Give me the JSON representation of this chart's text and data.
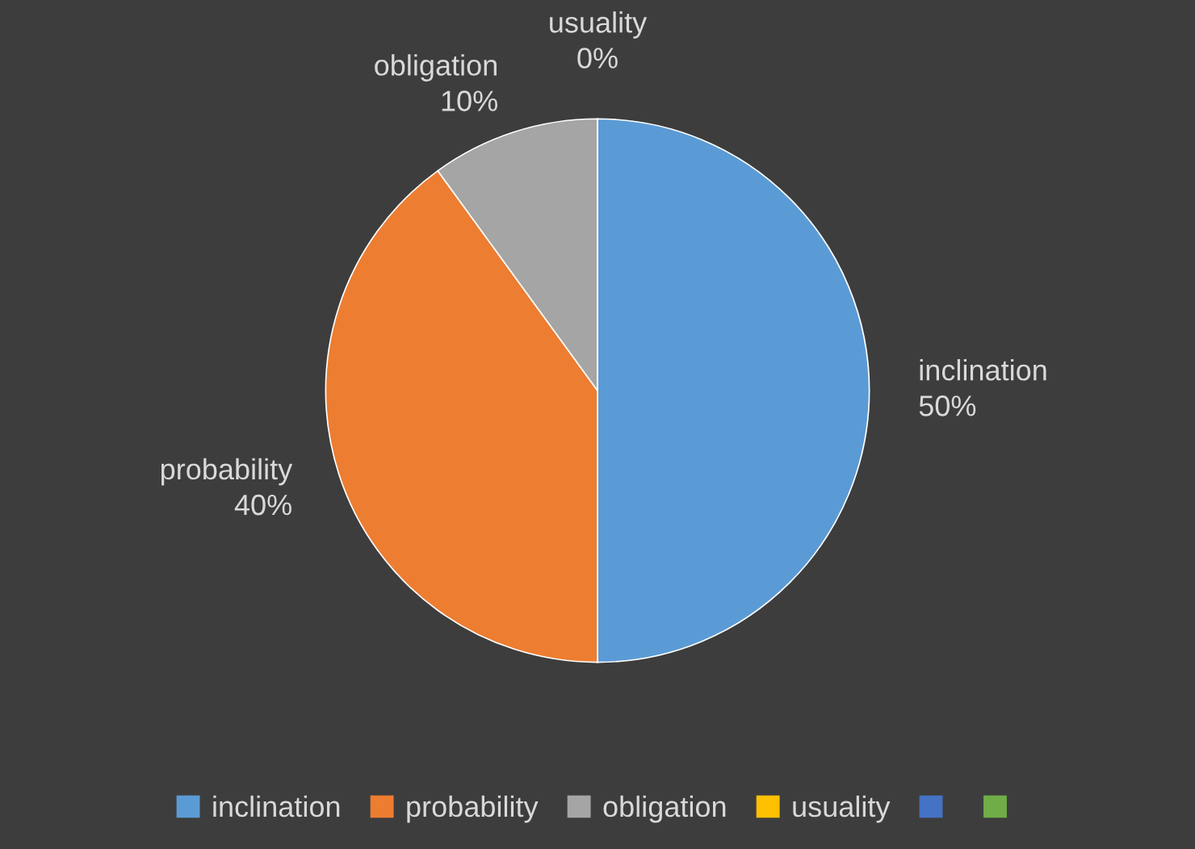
{
  "chart_data": {
    "type": "pie",
    "categories": [
      "inclination",
      "probability",
      "obligation",
      "usuality",
      null,
      null
    ],
    "values": [
      50,
      40,
      10,
      0,
      0,
      0
    ],
    "colors": [
      "#5b9bd5",
      "#ed7d31",
      "#a5a5a5",
      "#ffc000",
      "#4472c4",
      "#70ad47"
    ],
    "value_labels": [
      "50%",
      "40%",
      "10%",
      "0%",
      null,
      null
    ],
    "legend": "bottom"
  }
}
